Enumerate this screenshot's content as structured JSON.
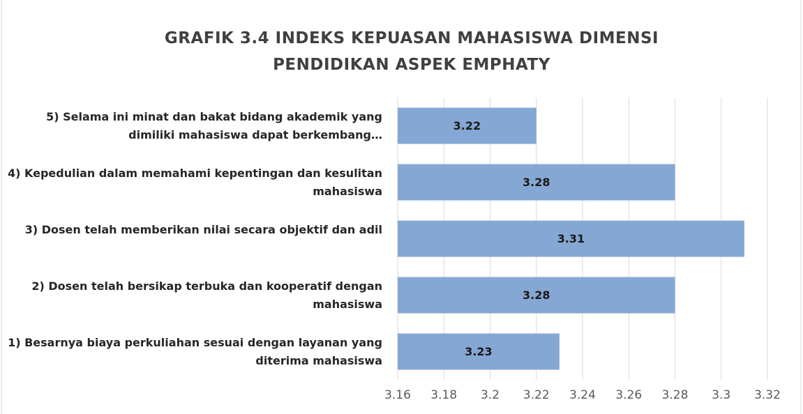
{
  "chart_data": {
    "type": "hbar",
    "title": "GRAFIK 3.4 INDEKS KEPUASAN MAHASISWA DIMENSI PENDIDIKAN ASPEK EMPHATY",
    "categories": [
      "5) Selama ini minat dan bakat bidang akademik yang dimiliki mahasiswa dapat berkembang…",
      "4) Kepedulian dalam memahami kepentingan dan kesulitan mahasiswa",
      "3) Dosen telah memberikan nilai secara objektif dan adil",
      "2) Dosen telah bersikap terbuka dan kooperatif dengan mahasiswa",
      "1) Besarnya biaya perkuliahan sesuai dengan layanan yang diterima mahasiswa"
    ],
    "values": [
      3.22,
      3.28,
      3.31,
      3.28,
      3.23
    ],
    "color": "#85a7d3",
    "xlim": [
      3.16,
      3.32
    ],
    "xticks": [
      3.16,
      3.18,
      3.2,
      3.22,
      3.24,
      3.26,
      3.28,
      3.3,
      3.32
    ],
    "grid": true
  }
}
